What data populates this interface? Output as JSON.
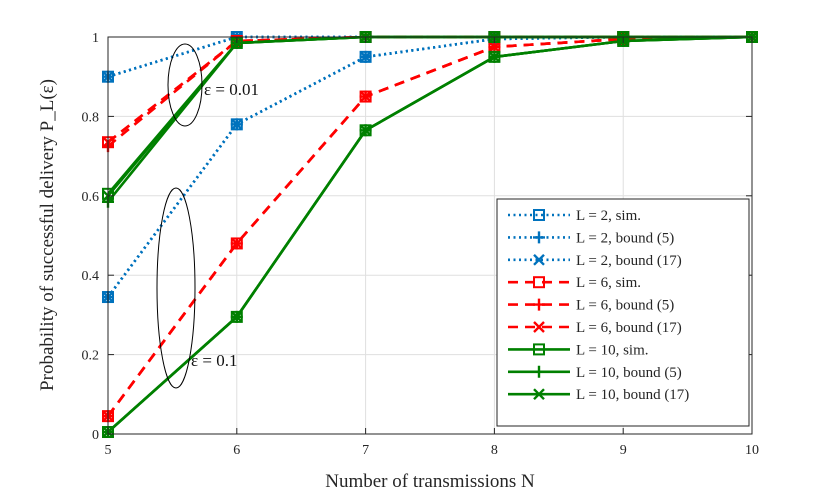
{
  "chart_data": {
    "type": "line",
    "xlabel": "Number of transmissions N",
    "ylabel": "Probability of successful delivery P_L(ε)",
    "xlim": [
      5,
      10
    ],
    "ylim": [
      0,
      1
    ],
    "x_ticks": [
      5,
      6,
      7,
      8,
      9,
      10
    ],
    "y_ticks": [
      0,
      0.2,
      0.4,
      0.6,
      0.8,
      1
    ],
    "y_tick_labels": [
      "0",
      "0.2",
      "0.4",
      "0.6",
      "0.8",
      "1"
    ],
    "grid": true,
    "legend_position": "bottom-right",
    "annotations": [
      {
        "text": "ε = 0.01",
        "x": 5.85,
        "y": 0.875
      },
      {
        "text": "ε = 0.1",
        "x": 5.85,
        "y": 0.19
      }
    ],
    "x": [
      5,
      6,
      7,
      8,
      9,
      10
    ],
    "series": [
      {
        "name": "L = 2, sim.",
        "epsilon": "0.01",
        "color": "#0072BD",
        "line": "dotted",
        "marker": "square",
        "values": [
          0.9,
          1.0,
          1.0,
          1.0,
          1.0,
          1.0
        ]
      },
      {
        "name": "L = 2, bound (5)",
        "epsilon": "0.01",
        "color": "#0072BD",
        "line": "dotted",
        "marker": "plus",
        "values": [
          0.9,
          1.0,
          1.0,
          1.0,
          1.0,
          1.0
        ]
      },
      {
        "name": "L = 2, bound (17)",
        "epsilon": "0.01",
        "color": "#0072BD",
        "line": "dotted",
        "marker": "x",
        "values": [
          0.9,
          1.0,
          1.0,
          1.0,
          1.0,
          1.0
        ]
      },
      {
        "name": "L = 2, sim.",
        "epsilon": "0.1",
        "color": "#0072BD",
        "line": "dotted",
        "marker": "square",
        "values": [
          0.345,
          0.78,
          0.95,
          0.995,
          1.0,
          1.0
        ]
      },
      {
        "name": "L = 2, bound (5)",
        "epsilon": "0.1",
        "color": "#0072BD",
        "line": "dotted",
        "marker": "plus",
        "values": [
          0.345,
          0.78,
          0.95,
          0.995,
          1.0,
          1.0
        ]
      },
      {
        "name": "L = 2, bound (17)",
        "epsilon": "0.1",
        "color": "#0072BD",
        "line": "dotted",
        "marker": "x",
        "values": [
          0.345,
          0.78,
          0.95,
          0.995,
          1.0,
          1.0
        ]
      },
      {
        "name": "L = 6, sim.",
        "epsilon": "0.01",
        "color": "#FF0000",
        "line": "dashed",
        "marker": "square",
        "values": [
          0.735,
          0.99,
          1.0,
          1.0,
          1.0,
          1.0
        ]
      },
      {
        "name": "L = 6, bound (5)",
        "epsilon": "0.01",
        "color": "#FF0000",
        "line": "dashed",
        "marker": "plus",
        "values": [
          0.725,
          0.99,
          1.0,
          1.0,
          1.0,
          1.0
        ]
      },
      {
        "name": "L = 6, bound (17)",
        "epsilon": "0.01",
        "color": "#FF0000",
        "line": "dashed",
        "marker": "x",
        "values": [
          0.735,
          0.99,
          1.0,
          1.0,
          1.0,
          1.0
        ]
      },
      {
        "name": "L = 6, sim.",
        "epsilon": "0.1",
        "color": "#FF0000",
        "line": "dashed",
        "marker": "square",
        "values": [
          0.045,
          0.48,
          0.85,
          0.975,
          0.995,
          1.0
        ]
      },
      {
        "name": "L = 6, bound (5)",
        "epsilon": "0.1",
        "color": "#FF0000",
        "line": "dashed",
        "marker": "plus",
        "values": [
          0.045,
          0.48,
          0.85,
          0.975,
          0.995,
          1.0
        ]
      },
      {
        "name": "L = 6, bound (17)",
        "epsilon": "0.1",
        "color": "#FF0000",
        "line": "dashed",
        "marker": "x",
        "values": [
          0.045,
          0.48,
          0.85,
          0.975,
          0.995,
          1.0
        ]
      },
      {
        "name": "L = 10, sim.",
        "epsilon": "0.01",
        "color": "#008000",
        "line": "solid",
        "marker": "square",
        "values": [
          0.605,
          0.985,
          1.0,
          1.0,
          1.0,
          1.0
        ]
      },
      {
        "name": "L = 10, bound (5)",
        "epsilon": "0.01",
        "color": "#008000",
        "line": "solid",
        "marker": "plus",
        "values": [
          0.585,
          0.985,
          1.0,
          1.0,
          1.0,
          1.0
        ]
      },
      {
        "name": "L = 10, bound (17)",
        "epsilon": "0.01",
        "color": "#008000",
        "line": "solid",
        "marker": "x",
        "values": [
          0.6,
          0.985,
          1.0,
          1.0,
          1.0,
          1.0
        ]
      },
      {
        "name": "L = 10, sim.",
        "epsilon": "0.1",
        "color": "#008000",
        "line": "solid",
        "marker": "square",
        "values": [
          0.005,
          0.295,
          0.765,
          0.95,
          0.99,
          1.0
        ]
      },
      {
        "name": "L = 10, bound (5)",
        "epsilon": "0.1",
        "color": "#008000",
        "line": "solid",
        "marker": "plus",
        "values": [
          0.005,
          0.295,
          0.765,
          0.95,
          0.99,
          1.0
        ]
      },
      {
        "name": "L = 10, bound (17)",
        "epsilon": "0.1",
        "color": "#008000",
        "line": "solid",
        "marker": "x",
        "values": [
          0.005,
          0.295,
          0.765,
          0.95,
          0.99,
          1.0
        ]
      }
    ],
    "legend": [
      {
        "label": "L = 2, sim.",
        "color": "#0072BD",
        "line": "dotted",
        "marker": "square"
      },
      {
        "label": "L = 2, bound (5)",
        "color": "#0072BD",
        "line": "dotted",
        "marker": "plus"
      },
      {
        "label": "L = 2, bound (17)",
        "color": "#0072BD",
        "line": "dotted",
        "marker": "x"
      },
      {
        "label": "L = 6, sim.",
        "color": "#FF0000",
        "line": "dashed",
        "marker": "square"
      },
      {
        "label": "L = 6, bound (5)",
        "color": "#FF0000",
        "line": "dashed",
        "marker": "plus"
      },
      {
        "label": "L = 6, bound (17)",
        "color": "#FF0000",
        "line": "dashed",
        "marker": "x"
      },
      {
        "label": "L = 10, sim.",
        "color": "#008000",
        "line": "solid",
        "marker": "square"
      },
      {
        "label": "L = 10, bound (5)",
        "color": "#008000",
        "line": "solid",
        "marker": "plus"
      },
      {
        "label": "L = 10, bound (17)",
        "color": "#008000",
        "line": "solid",
        "marker": "x"
      }
    ]
  }
}
